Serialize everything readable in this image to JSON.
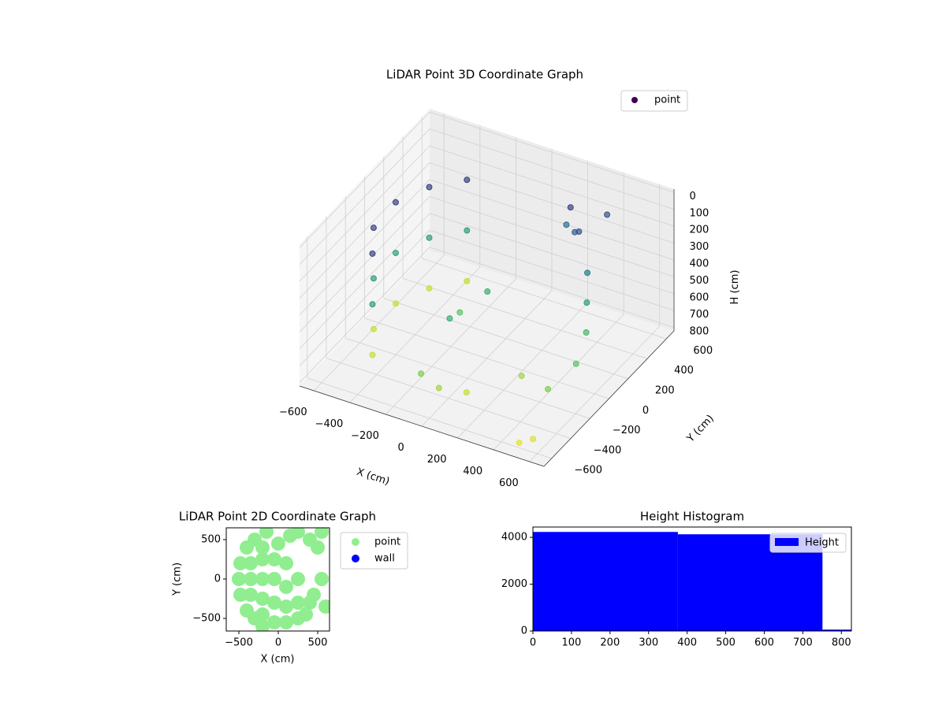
{
  "chart_data": [
    {
      "type": "scatter3d",
      "title": "LiDAR Point 3D Coordinate Graph",
      "xlabel": "X (cm)",
      "ylabel": "Y (cm)",
      "zlabel": "H (cm)",
      "xlim": [
        -680,
        680
      ],
      "ylim": [
        -680,
        680
      ],
      "zlim": [
        820,
        -20
      ],
      "xticks": [
        {
          "value": -600,
          "label": "−600"
        },
        {
          "value": -400,
          "label": "−400"
        },
        {
          "value": -200,
          "label": "−200"
        },
        0,
        200,
        400,
        600
      ],
      "yticks": [
        {
          "value": -600,
          "label": "−600"
        },
        {
          "value": -400,
          "label": "−400"
        },
        {
          "value": -200,
          "label": "−200"
        },
        0,
        200,
        400,
        600
      ],
      "zticks": [
        0,
        100,
        200,
        300,
        400,
        500,
        600,
        700,
        800
      ],
      "colormap": "viridis",
      "grid": true,
      "legend": "upper right",
      "series": [
        {
          "name": "point",
          "color": "#440154",
          "x": [
            -450,
            -550,
            -560,
            -480,
            -350,
            -450,
            -550,
            -560,
            -480,
            -350,
            -450,
            -550,
            -560,
            -480,
            -350,
            -100,
            -50,
            -150,
            200,
            250,
            300,
            400,
            450,
            500,
            550,
            500,
            300,
            100,
            0,
            -100,
            500,
            550,
            350,
            150
          ],
          "y": [
            -350,
            -150,
            100,
            300,
            450,
            -350,
            -150,
            100,
            300,
            450,
            -350,
            -150,
            100,
            300,
            450,
            -200,
            100,
            0,
            500,
            450,
            400,
            300,
            200,
            100,
            -100,
            -300,
            -200,
            -400,
            -500,
            -500,
            -600,
            -550,
            600,
            550
          ],
          "h": [
            150,
            150,
            150,
            150,
            150,
            450,
            450,
            450,
            450,
            450,
            750,
            750,
            750,
            750,
            750,
            500,
            500,
            600,
            150,
            250,
            200,
            350,
            450,
            550,
            600,
            650,
            700,
            750,
            700,
            650,
            790,
            780,
            200,
            300
          ]
        }
      ]
    },
    {
      "type": "scatter",
      "title": "LiDAR Point 2D Coordinate Graph",
      "xlabel": "X (cm)",
      "ylabel": "Y (cm)",
      "xlim": [
        -660,
        650
      ],
      "ylim": [
        -660,
        650
      ],
      "xticks": [
        {
          "value": -500,
          "label": "−500"
        },
        0,
        500
      ],
      "yticks": [
        {
          "value": -500,
          "label": "−500"
        },
        0,
        500
      ],
      "legend": "outside right",
      "series": [
        {
          "name": "point",
          "color": "#90ee90",
          "x": [
            -500,
            -480,
            -480,
            -400,
            -400,
            -300,
            -300,
            -200,
            -150,
            -350,
            -350,
            -350,
            -200,
            -200,
            -200,
            -200,
            -200,
            -50,
            -50,
            -50,
            -50,
            0,
            100,
            100,
            100,
            100,
            250,
            250,
            250,
            150,
            350,
            400,
            250,
            400,
            500,
            550,
            450,
            600,
            550
          ],
          "y": [
            0,
            -200,
            200,
            -400,
            400,
            -500,
            500,
            -600,
            600,
            0,
            -200,
            200,
            0,
            -250,
            250,
            -450,
            400,
            0,
            -300,
            250,
            -550,
            450,
            -100,
            -350,
            200,
            -550,
            -300,
            -500,
            0,
            550,
            -450,
            -300,
            600,
            500,
            400,
            600,
            -200,
            -350,
            0
          ]
        },
        {
          "name": "wall",
          "color": "#0000ff",
          "x": [],
          "y": []
        }
      ]
    },
    {
      "type": "histogram",
      "title": "Height Histogram",
      "xlim": [
        0,
        826
      ],
      "ylim": [
        0,
        4440
      ],
      "xticks": [
        0,
        100,
        200,
        300,
        400,
        500,
        600,
        700,
        800
      ],
      "yticks": [
        0,
        2000,
        4000
      ],
      "bins": [
        0,
        376,
        751,
        826
      ],
      "legend": "upper right",
      "series": [
        {
          "name": "Height",
          "color": "#0000ff",
          "values": [
            4230,
            4130,
            60
          ]
        }
      ]
    }
  ]
}
